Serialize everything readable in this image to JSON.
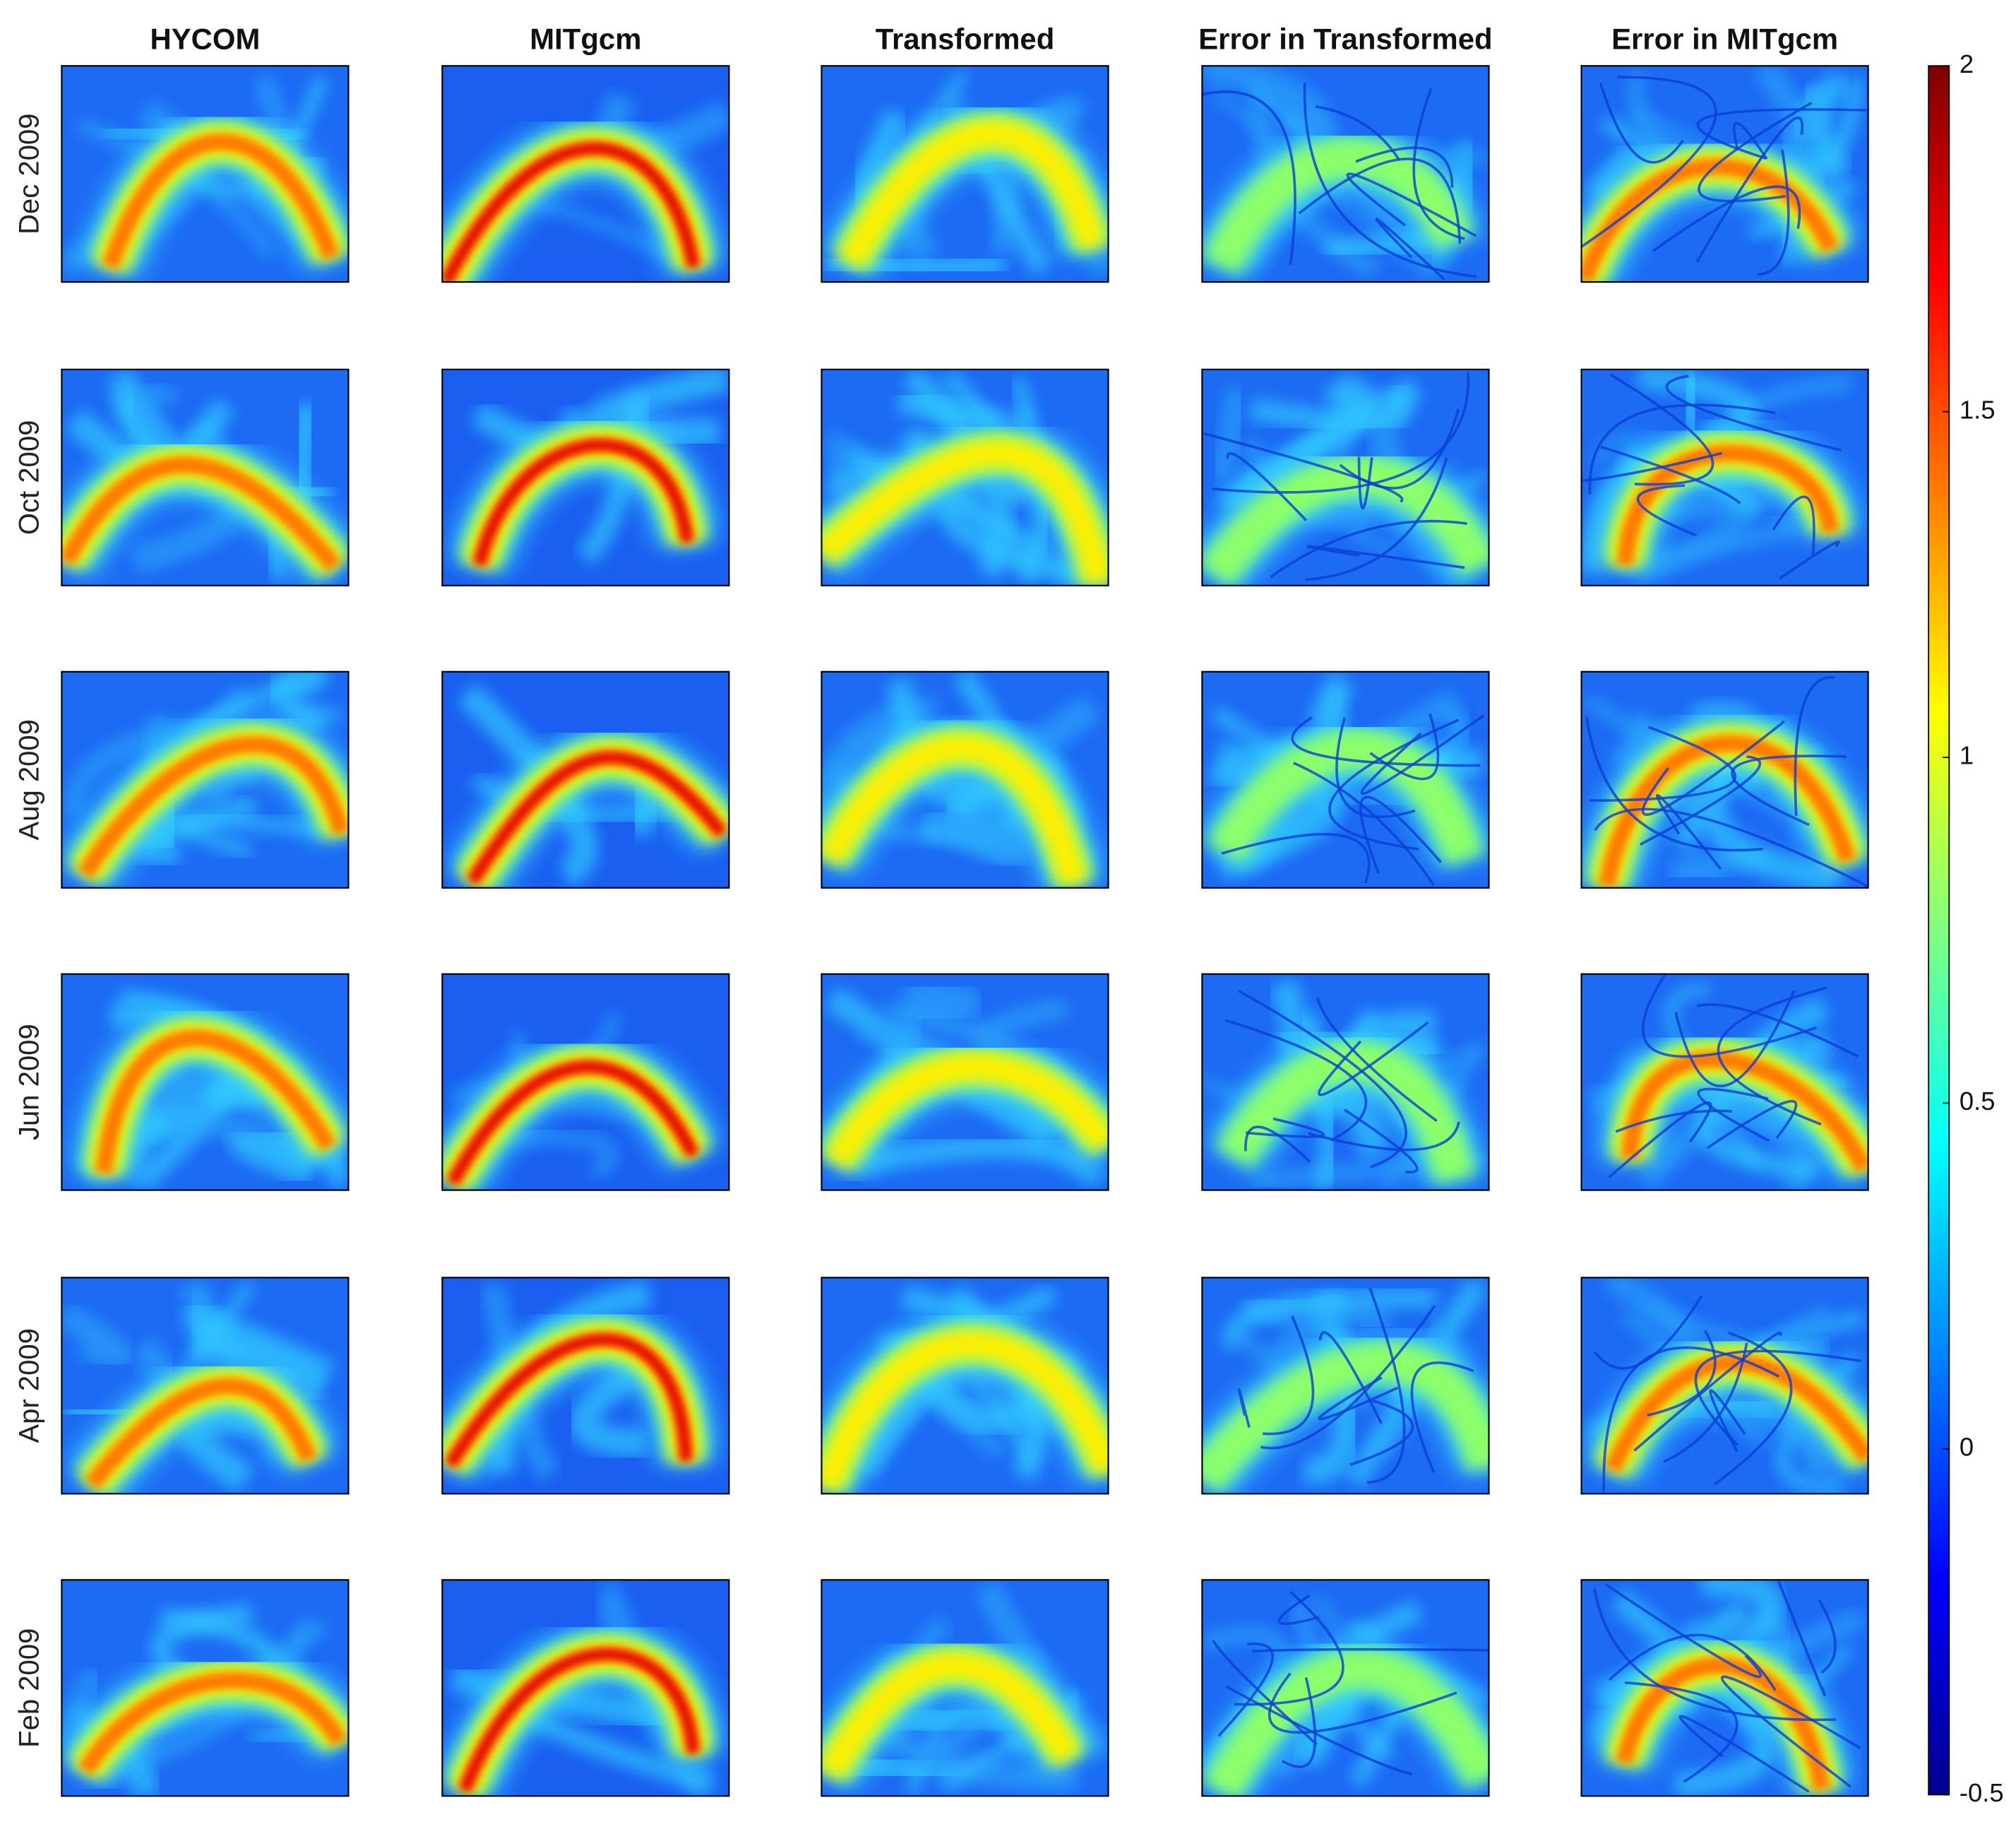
{
  "chart_data": {
    "type": "heatmap-grid",
    "columns": [
      "HYCOM",
      "MITgcm",
      "Transformed",
      "Error in Transformed",
      "Error in MITgcm"
    ],
    "rows": [
      "Dec 2009",
      "Oct 2009",
      "Aug 2009",
      "Jun 2009",
      "Apr 2009",
      "Feb 2009"
    ],
    "colormap": "jet",
    "clim": [
      -0.5,
      2
    ],
    "cticks": [
      -0.5,
      0,
      0.5,
      1,
      1.5,
      2
    ]
  }
}
